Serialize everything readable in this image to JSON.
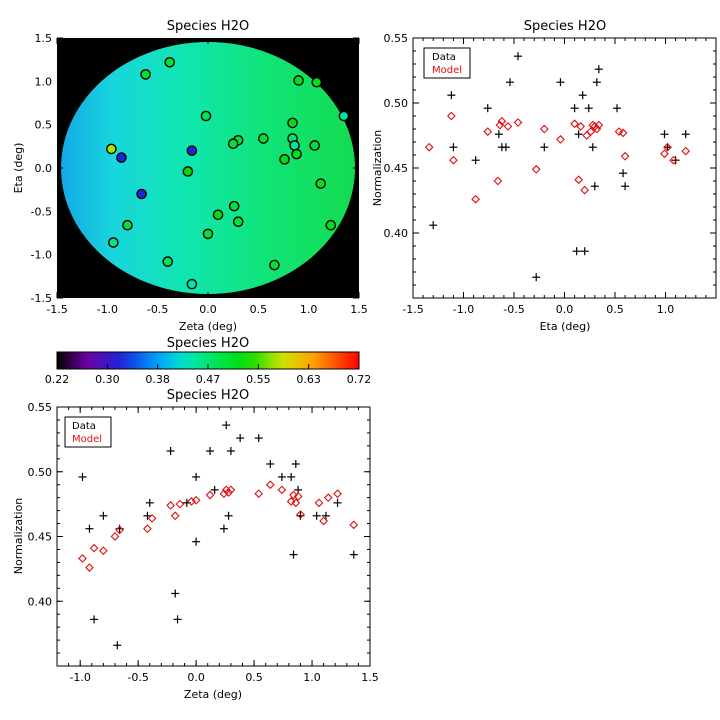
{
  "colors": {
    "data": "#000000",
    "model": "#e01010",
    "background": "#ffffff",
    "map_bg": "#000000"
  },
  "chart_data": [
    {
      "type": "heatmap",
      "title": "Species H2O",
      "xlabel": "Zeta (deg)",
      "ylabel": "Eta (deg)",
      "xlim": [
        -1.5,
        1.5
      ],
      "ylim": [
        -1.5,
        1.5
      ],
      "xticks": [
        "-1.5",
        "-1.0",
        "-0.5",
        "0.0",
        "0.5",
        "1.0",
        "1.5"
      ],
      "yticks": [
        "-1.5",
        "-1.0",
        "-0.5",
        "0.0",
        "0.5",
        "1.0",
        "1.5"
      ],
      "field_radius_deg": 1.47,
      "points": [
        {
          "zeta": -0.62,
          "eta": 1.08,
          "value": 0.5
        },
        {
          "zeta": -0.38,
          "eta": 1.22,
          "value": 0.5
        },
        {
          "zeta": 0.9,
          "eta": 1.01,
          "value": 0.52
        },
        {
          "zeta": 1.08,
          "eta": 0.99,
          "value": 0.52
        },
        {
          "zeta": 1.35,
          "eta": 0.6,
          "value": 0.45
        },
        {
          "zeta": -0.02,
          "eta": 0.6,
          "value": 0.48
        },
        {
          "zeta": 0.3,
          "eta": 0.32,
          "value": 0.5
        },
        {
          "zeta": 0.25,
          "eta": 0.28,
          "value": 0.5
        },
        {
          "zeta": 0.55,
          "eta": 0.34,
          "value": 0.5
        },
        {
          "zeta": 0.84,
          "eta": 0.52,
          "value": 0.52
        },
        {
          "zeta": 0.84,
          "eta": 0.34,
          "value": 0.47
        },
        {
          "zeta": 0.86,
          "eta": 0.26,
          "value": 0.45
        },
        {
          "zeta": 0.88,
          "eta": 0.16,
          "value": 0.52
        },
        {
          "zeta": 0.76,
          "eta": 0.1,
          "value": 0.52
        },
        {
          "zeta": 1.06,
          "eta": 0.26,
          "value": 0.5
        },
        {
          "zeta": -0.96,
          "eta": 0.22,
          "value": 0.58
        },
        {
          "zeta": -0.86,
          "eta": 0.12,
          "value": 0.33
        },
        {
          "zeta": -0.16,
          "eta": 0.2,
          "value": 0.33
        },
        {
          "zeta": -0.2,
          "eta": -0.04,
          "value": 0.53
        },
        {
          "zeta": -0.66,
          "eta": -0.3,
          "value": 0.33
        },
        {
          "zeta": 1.12,
          "eta": -0.18,
          "value": 0.52
        },
        {
          "zeta": 0.26,
          "eta": -0.44,
          "value": 0.5
        },
        {
          "zeta": 0.1,
          "eta": -0.54,
          "value": 0.52
        },
        {
          "zeta": 0.3,
          "eta": -0.62,
          "value": 0.5
        },
        {
          "zeta": -0.8,
          "eta": -0.66,
          "value": 0.5
        },
        {
          "zeta": 1.22,
          "eta": -0.66,
          "value": 0.52
        },
        {
          "zeta": 0.0,
          "eta": -0.76,
          "value": 0.5
        },
        {
          "zeta": -0.94,
          "eta": -0.86,
          "value": 0.46
        },
        {
          "zeta": -0.4,
          "eta": -1.08,
          "value": 0.48
        },
        {
          "zeta": 0.66,
          "eta": -1.12,
          "value": 0.5
        },
        {
          "zeta": -0.16,
          "eta": -1.34,
          "value": 0.44
        }
      ]
    },
    {
      "type": "scatter",
      "title": "Species H2O",
      "xlabel": "Eta (deg)",
      "ylabel": "Normalization",
      "xlim": [
        -1.5,
        1.5
      ],
      "ylim": [
        0.35,
        0.55
      ],
      "xticks": [
        "-1.5",
        "-1.0",
        "-0.5",
        "0.0",
        "0.5",
        "1.0"
      ],
      "yticks": [
        "0.40",
        "0.45",
        "0.50",
        "0.55"
      ],
      "legend": [
        "Data",
        "Model"
      ],
      "legend_position": "top-left",
      "series": [
        {
          "name": "Data",
          "marker": "plus",
          "x": [
            -1.3,
            -1.12,
            -1.1,
            -0.88,
            -0.76,
            -0.65,
            -0.62,
            -0.58,
            -0.54,
            -0.46,
            -0.28,
            -0.2,
            -0.04,
            0.1,
            0.12,
            0.14,
            0.18,
            0.2,
            0.24,
            0.28,
            0.3,
            0.32,
            0.34,
            0.52,
            0.58,
            0.6,
            0.99,
            1.02,
            1.1,
            1.2
          ],
          "y": [
            0.406,
            0.506,
            0.466,
            0.456,
            0.496,
            0.476,
            0.466,
            0.466,
            0.516,
            0.536,
            0.366,
            0.466,
            0.516,
            0.496,
            0.386,
            0.476,
            0.506,
            0.386,
            0.496,
            0.466,
            0.436,
            0.516,
            0.526,
            0.496,
            0.446,
            0.436,
            0.476,
            0.466,
            0.456,
            0.476
          ]
        },
        {
          "name": "Model",
          "marker": "diamond",
          "x": [
            -1.34,
            -1.12,
            -1.1,
            -0.88,
            -0.76,
            -0.66,
            -0.64,
            -0.62,
            -0.56,
            -0.46,
            -0.28,
            -0.2,
            -0.04,
            0.1,
            0.14,
            0.16,
            0.2,
            0.22,
            0.26,
            0.28,
            0.3,
            0.32,
            0.34,
            0.54,
            0.58,
            0.6,
            0.99,
            1.02,
            1.08,
            1.2
          ],
          "y": [
            0.466,
            0.49,
            0.456,
            0.426,
            0.478,
            0.44,
            0.483,
            0.486,
            0.482,
            0.485,
            0.449,
            0.48,
            0.472,
            0.484,
            0.441,
            0.482,
            0.433,
            0.475,
            0.478,
            0.483,
            0.482,
            0.48,
            0.483,
            0.478,
            0.477,
            0.459,
            0.461,
            0.466,
            0.456,
            0.463
          ]
        }
      ]
    },
    {
      "type": "scatter",
      "title": "Species H2O",
      "xlabel": "Zeta (deg)",
      "ylabel": "Normalization",
      "xlim": [
        -1.2,
        1.5
      ],
      "ylim": [
        0.35,
        0.55
      ],
      "xticks": [
        "-1.0",
        "-0.5",
        "0.0",
        "0.5",
        "1.0",
        "1.5"
      ],
      "yticks": [
        "0.40",
        "0.45",
        "0.50",
        "0.55"
      ],
      "legend": [
        "Data",
        "Model"
      ],
      "legend_position": "top-left",
      "series": [
        {
          "name": "Data",
          "marker": "plus",
          "x": [
            -0.98,
            -0.92,
            -0.88,
            -0.8,
            -0.68,
            -0.66,
            -0.42,
            -0.4,
            -0.22,
            -0.18,
            -0.16,
            -0.08,
            0.0,
            0.0,
            0.12,
            0.16,
            0.24,
            0.26,
            0.28,
            0.3,
            0.38,
            0.54,
            0.64,
            0.74,
            0.82,
            0.84,
            0.86,
            0.88,
            0.9,
            1.04,
            1.12,
            1.22,
            1.36
          ],
          "y": [
            0.496,
            0.456,
            0.386,
            0.466,
            0.366,
            0.456,
            0.466,
            0.476,
            0.516,
            0.406,
            0.386,
            0.476,
            0.446,
            0.496,
            0.516,
            0.486,
            0.456,
            0.536,
            0.466,
            0.516,
            0.526,
            0.526,
            0.506,
            0.496,
            0.496,
            0.436,
            0.506,
            0.486,
            0.466,
            0.466,
            0.466,
            0.476,
            0.436
          ]
        },
        {
          "name": "Model",
          "marker": "diamond",
          "x": [
            -0.98,
            -0.92,
            -0.88,
            -0.8,
            -0.7,
            -0.66,
            -0.42,
            -0.38,
            -0.22,
            -0.18,
            -0.14,
            -0.04,
            0.0,
            0.12,
            0.24,
            0.26,
            0.28,
            0.3,
            0.54,
            0.64,
            0.74,
            0.82,
            0.84,
            0.86,
            0.88,
            0.9,
            1.06,
            1.1,
            1.14,
            1.22,
            1.36
          ],
          "y": [
            0.433,
            0.426,
            0.441,
            0.439,
            0.45,
            0.455,
            0.456,
            0.464,
            0.474,
            0.466,
            0.475,
            0.477,
            0.478,
            0.482,
            0.483,
            0.486,
            0.484,
            0.486,
            0.483,
            0.49,
            0.486,
            0.477,
            0.482,
            0.476,
            0.481,
            0.467,
            0.476,
            0.462,
            0.48,
            0.483,
            0.459
          ]
        }
      ]
    }
  ],
  "colorbar": {
    "title": "Species H2O",
    "range": [
      0.22,
      0.72
    ],
    "tick_labels": [
      "0.22",
      "0.30",
      "0.38",
      "0.47",
      "0.55",
      "0.63",
      "0.72"
    ]
  }
}
